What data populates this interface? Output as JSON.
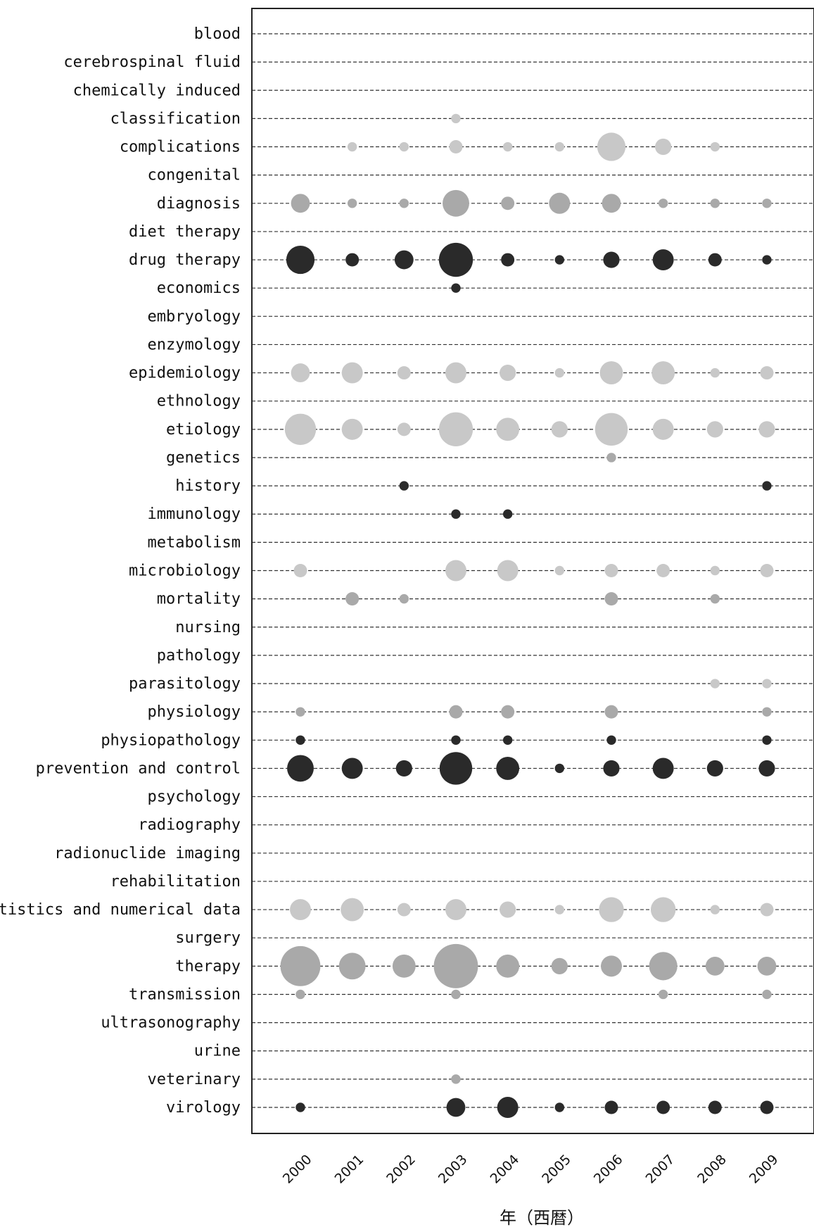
{
  "chart_data": {
    "type": "scatter",
    "xlabel": "年（西暦）",
    "x": [
      "2000",
      "2001",
      "2002",
      "2003",
      "2004",
      "2005",
      "2006",
      "2007",
      "2008",
      "2009"
    ],
    "size_unit": "relative",
    "colors": {
      "light": "#c8c8c8",
      "mid": "#a9a9a9",
      "dark": "#2a2a2a"
    },
    "grid": true,
    "rows": [
      {
        "label": "blood",
        "color": "light",
        "sizes": [
          0,
          0,
          0,
          0,
          0,
          0,
          0,
          0,
          0,
          0
        ]
      },
      {
        "label": "cerebrospinal fluid",
        "color": "light",
        "sizes": [
          0,
          0,
          0,
          0,
          0,
          0,
          0,
          0,
          0,
          0
        ]
      },
      {
        "label": "chemically induced",
        "color": "light",
        "sizes": [
          0,
          0,
          0,
          0,
          0,
          0,
          0,
          0,
          0,
          0
        ]
      },
      {
        "label": "classification",
        "color": "light",
        "sizes": [
          0,
          0,
          0,
          1,
          0,
          0,
          0,
          0,
          0,
          0
        ]
      },
      {
        "label": "complications",
        "color": "light",
        "sizes": [
          0,
          1,
          1,
          2,
          1,
          1,
          9,
          3,
          1,
          0
        ]
      },
      {
        "label": "congenital",
        "color": "light",
        "sizes": [
          0,
          0,
          0,
          0,
          0,
          0,
          0,
          0,
          0,
          0
        ]
      },
      {
        "label": "diagnosis",
        "color": "mid",
        "sizes": [
          4,
          1,
          1,
          8,
          2,
          5,
          4,
          1,
          1,
          1
        ]
      },
      {
        "label": "diet therapy",
        "color": "mid",
        "sizes": [
          0,
          0,
          0,
          0,
          0,
          0,
          0,
          0,
          0,
          0
        ]
      },
      {
        "label": "drug therapy",
        "color": "dark",
        "sizes": [
          9,
          2,
          4,
          13,
          2,
          1,
          3,
          5,
          2,
          1
        ]
      },
      {
        "label": "economics",
        "color": "dark",
        "sizes": [
          0,
          0,
          0,
          1,
          0,
          0,
          0,
          0,
          0,
          0
        ]
      },
      {
        "label": "embryology",
        "color": "light",
        "sizes": [
          0,
          0,
          0,
          0,
          0,
          0,
          0,
          0,
          0,
          0
        ]
      },
      {
        "label": "enzymology",
        "color": "light",
        "sizes": [
          0,
          0,
          0,
          0,
          0,
          0,
          0,
          0,
          0,
          0
        ]
      },
      {
        "label": "epidemiology",
        "color": "light",
        "sizes": [
          4,
          5,
          2,
          5,
          3,
          1,
          6,
          6,
          1,
          2
        ]
      },
      {
        "label": "ethnology",
        "color": "light",
        "sizes": [
          0,
          0,
          0,
          0,
          0,
          0,
          0,
          0,
          0,
          0
        ]
      },
      {
        "label": "etiology",
        "color": "light",
        "sizes": [
          11,
          5,
          2,
          13,
          6,
          3,
          12,
          5,
          3,
          3
        ]
      },
      {
        "label": "genetics",
        "color": "mid",
        "sizes": [
          0,
          0,
          0,
          0,
          0,
          0,
          1,
          0,
          0,
          0
        ]
      },
      {
        "label": "history",
        "color": "dark",
        "sizes": [
          0,
          0,
          1,
          0,
          0,
          0,
          0,
          0,
          0,
          1
        ]
      },
      {
        "label": "immunology",
        "color": "dark",
        "sizes": [
          0,
          0,
          0,
          1,
          1,
          0,
          0,
          0,
          0,
          0
        ]
      },
      {
        "label": "metabolism",
        "color": "light",
        "sizes": [
          0,
          0,
          0,
          0,
          0,
          0,
          0,
          0,
          0,
          0
        ]
      },
      {
        "label": "microbiology",
        "color": "light",
        "sizes": [
          2,
          0,
          0,
          5,
          5,
          1,
          2,
          2,
          1,
          2
        ]
      },
      {
        "label": "mortality",
        "color": "mid",
        "sizes": [
          0,
          2,
          1,
          0,
          0,
          0,
          2,
          0,
          1,
          0
        ]
      },
      {
        "label": "nursing",
        "color": "light",
        "sizes": [
          0,
          0,
          0,
          0,
          0,
          0,
          0,
          0,
          0,
          0
        ]
      },
      {
        "label": "pathology",
        "color": "light",
        "sizes": [
          0,
          0,
          0,
          0,
          0,
          0,
          0,
          0,
          0,
          0
        ]
      },
      {
        "label": "parasitology",
        "color": "light",
        "sizes": [
          0,
          0,
          0,
          0,
          0,
          0,
          0,
          0,
          1,
          1
        ]
      },
      {
        "label": "physiology",
        "color": "mid",
        "sizes": [
          1,
          0,
          0,
          2,
          2,
          0,
          2,
          0,
          0,
          1
        ]
      },
      {
        "label": "physiopathology",
        "color": "dark",
        "sizes": [
          1,
          0,
          0,
          1,
          1,
          0,
          1,
          0,
          0,
          1
        ]
      },
      {
        "label": "prevention and control",
        "color": "dark",
        "sizes": [
          8,
          5,
          3,
          12,
          6,
          1,
          3,
          5,
          3,
          3
        ]
      },
      {
        "label": "psychology",
        "color": "light",
        "sizes": [
          0,
          0,
          0,
          0,
          0,
          0,
          0,
          0,
          0,
          0
        ]
      },
      {
        "label": "radiography",
        "color": "light",
        "sizes": [
          0,
          0,
          0,
          0,
          0,
          0,
          0,
          0,
          0,
          0
        ]
      },
      {
        "label": "radionuclide imaging",
        "color": "light",
        "sizes": [
          0,
          0,
          0,
          0,
          0,
          0,
          0,
          0,
          0,
          0
        ]
      },
      {
        "label": "rehabilitation",
        "color": "light",
        "sizes": [
          0,
          0,
          0,
          0,
          0,
          0,
          0,
          0,
          0,
          0
        ]
      },
      {
        "label": "statistics and numerical data",
        "color": "light",
        "sizes": [
          5,
          6,
          2,
          5,
          3,
          1,
          7,
          7,
          1,
          2
        ]
      },
      {
        "label": "surgery",
        "color": "light",
        "sizes": [
          0,
          0,
          0,
          0,
          0,
          0,
          0,
          0,
          0,
          0
        ]
      },
      {
        "label": "therapy",
        "color": "mid",
        "sizes": [
          18,
          8,
          6,
          22,
          6,
          3,
          5,
          9,
          4,
          4
        ]
      },
      {
        "label": "transmission",
        "color": "mid",
        "sizes": [
          1,
          0,
          0,
          1,
          0,
          0,
          0,
          1,
          0,
          1
        ]
      },
      {
        "label": "ultrasonography",
        "color": "light",
        "sizes": [
          0,
          0,
          0,
          0,
          0,
          0,
          0,
          0,
          0,
          0
        ]
      },
      {
        "label": "urine",
        "color": "light",
        "sizes": [
          0,
          0,
          0,
          0,
          0,
          0,
          0,
          0,
          0,
          0
        ]
      },
      {
        "label": "veterinary",
        "color": "mid",
        "sizes": [
          0,
          0,
          0,
          1,
          0,
          0,
          0,
          0,
          0,
          0
        ]
      },
      {
        "label": "virology",
        "color": "dark",
        "sizes": [
          1,
          0,
          0,
          4,
          5,
          1,
          2,
          2,
          2,
          2
        ]
      }
    ]
  }
}
